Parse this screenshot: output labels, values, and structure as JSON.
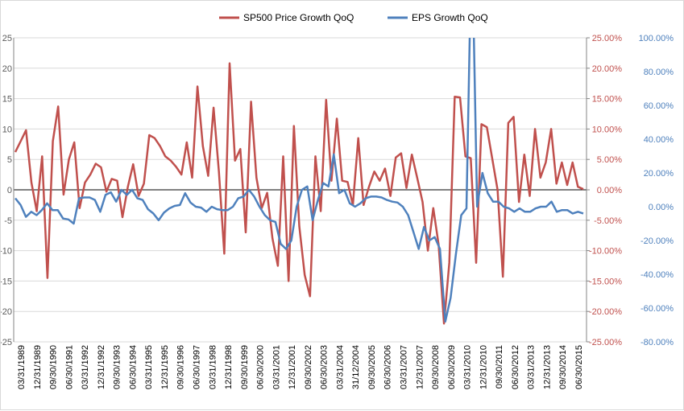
{
  "colors": {
    "price": "#c0504d",
    "eps": "#4f81bd",
    "grid": "#d9d9d9"
  },
  "chart_data": {
    "type": "line",
    "title": "",
    "left_axis": {
      "ylim": [
        -25,
        25
      ],
      "ticks": [
        -25,
        -20,
        -15,
        -10,
        -5,
        0,
        5,
        10,
        15,
        20,
        25
      ],
      "labels": [
        "-25",
        "-20",
        "-15",
        "-10",
        "-5",
        "0",
        "5",
        "10",
        "15",
        "20",
        "25"
      ]
    },
    "right_axis_a": {
      "ylim": [
        -25,
        25
      ],
      "ticks": [
        -25,
        -20,
        -15,
        -10,
        -5,
        0,
        5,
        10,
        15,
        20,
        25
      ],
      "labels": [
        "-25.00%",
        "-20.00%",
        "-15.00%",
        "-10.00%",
        "-5.00%",
        "0.00%",
        "5.00%",
        "10.00%",
        "15.00%",
        "20.00%",
        "25.00%"
      ]
    },
    "right_axis_b": {
      "ylim": [
        -80,
        100
      ],
      "ticks": [
        -80,
        -60,
        -40,
        -20,
        0,
        20,
        40,
        60,
        80,
        100
      ],
      "labels": [
        "-80.00%",
        "-60.00%",
        "-40.00%",
        "-20.00%",
        "0.00%",
        "20.00%",
        "40.00%",
        "60.00%",
        "80.00%",
        "100.00%"
      ]
    },
    "x_labels": [
      "03/31/1989",
      "12/31/1989",
      "09/30/1990",
      "06/30/1991",
      "03/31/1992",
      "12/31/1992",
      "09/30/1993",
      "06/30/1994",
      "03/31/1995",
      "12/31/1995",
      "09/30/1996",
      "06/30/1997",
      "03/31/1998",
      "12/31/1998",
      "09/30/1999",
      "06/30/2000",
      "03/31/2001",
      "12/31/2001",
      "09/30/2002",
      "06/30/2003",
      "03/31/2004",
      "31/12/2004",
      "09/30/2005",
      "06/30/2006",
      "03/31/2007",
      "12/31/2007",
      "09/30/2008",
      "06/30/2009",
      "03/31/2010",
      "12/31/2010",
      "09/30/2011",
      "06/30/2012",
      "03/31/2013",
      "12/31/2013",
      "09/30/2014",
      "06/30/2015"
    ],
    "legend_position": "top",
    "series": [
      {
        "name": "SP500 Price Growth QoQ",
        "axis": "right_a",
        "values": [
          6.2,
          8.0,
          9.8,
          1.2,
          -3.5,
          5.5,
          -14.5,
          8.0,
          13.7,
          -0.8,
          5.0,
          7.8,
          -3.0,
          1.2,
          2.5,
          4.3,
          3.7,
          -0.3,
          1.8,
          1.5,
          -4.5,
          0.5,
          4.2,
          -1.0,
          1.0,
          9.0,
          8.5,
          7.2,
          5.5,
          4.8,
          3.8,
          2.5,
          7.8,
          2.0,
          17.0,
          7.2,
          2.3,
          13.5,
          3.0,
          -10.5,
          20.8,
          4.8,
          6.7,
          -7.0,
          14.5,
          2.0,
          -3.0,
          -0.5,
          -8.0,
          -12.5,
          5.5,
          -15.0,
          10.5,
          -6.0,
          -14.0,
          -17.5,
          5.5,
          -3.5,
          14.8,
          1.5,
          11.7,
          1.5,
          1.3,
          -2.5,
          8.5,
          -2.5,
          0.5,
          3.0,
          1.5,
          3.5,
          -1.0,
          5.3,
          6.0,
          0.3,
          5.8,
          2.0,
          -2.0,
          -10.0,
          -3.0,
          -9.0,
          -22.0,
          -12.0,
          15.3,
          15.2,
          5.5,
          5.2,
          -12.0,
          10.8,
          10.3,
          5.2,
          0.0,
          -14.3,
          11.0,
          12.0,
          -2.0,
          5.8,
          -1.0,
          10.0,
          2.0,
          4.5,
          10.0,
          1.0,
          4.5,
          0.8,
          4.5,
          0.5,
          0.1
        ]
      },
      {
        "name": "EPS Growth QoQ",
        "axis": "right_b",
        "values": [
          5.0,
          1.0,
          -6.0,
          -3.0,
          -5.0,
          -2.0,
          2.0,
          -2.0,
          -2.0,
          -7.0,
          -7.5,
          -10.0,
          5.0,
          5.5,
          5.5,
          4.0,
          -3.0,
          7.0,
          8.5,
          3.0,
          10.0,
          7.0,
          10.0,
          5.0,
          4.0,
          -1.5,
          -4.0,
          -8.0,
          -3.5,
          -1.0,
          0.5,
          1.0,
          8.0,
          2.5,
          0.0,
          -0.5,
          -3.0,
          0.0,
          -1.5,
          -2.0,
          -2.0,
          0.0,
          5.0,
          6.0,
          10.0,
          6.0,
          0.0,
          -5.0,
          -8.0,
          -9.0,
          -22.0,
          -25.0,
          -20.0,
          0.0,
          10.0,
          12.0,
          -8.0,
          4.0,
          14.0,
          12.0,
          31.0,
          8.0,
          10.0,
          2.0,
          0.0,
          2.0,
          5.0,
          6.0,
          6.0,
          5.5,
          4.0,
          3.0,
          2.5,
          0.0,
          -5.0,
          -15.0,
          -25.0,
          -12.0,
          -20.0,
          -18.0,
          -25.0,
          -68.0,
          -54.0,
          -28.0,
          -5.0,
          -1.0,
          165.0,
          0.0,
          20.0,
          8.0,
          3.0,
          3.0,
          0.0,
          -1.0,
          -3.0,
          -1.0,
          -3.0,
          -3.0,
          -1.0,
          0.0,
          0.0,
          3.0,
          -3.0,
          -2.0,
          -2.0,
          -4.0,
          -3.0,
          -4.0
        ]
      }
    ]
  }
}
